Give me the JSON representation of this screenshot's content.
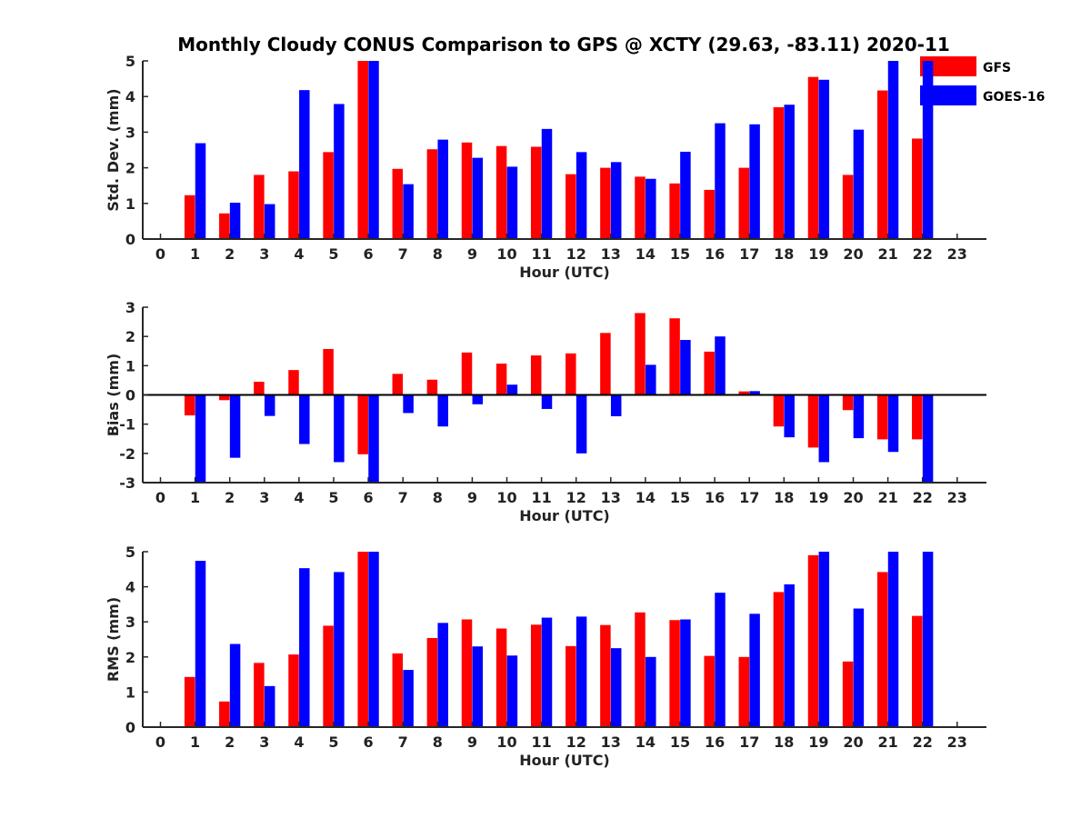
{
  "chart_data": {
    "title": "Monthly Cloudy CONUS Comparison to GPS @ XCTY (29.63, -83.11) 2020-11",
    "legend": [
      {
        "name": "GFS",
        "color": "#ff0000"
      },
      {
        "name": "GOES-16",
        "color": "#0000ff"
      }
    ],
    "legend_placement": "top-right",
    "categories": [
      "0",
      "1",
      "2",
      "3",
      "4",
      "5",
      "6",
      "7",
      "8",
      "9",
      "10",
      "11",
      "12",
      "13",
      "14",
      "15",
      "16",
      "17",
      "18",
      "19",
      "20",
      "21",
      "22",
      "23"
    ],
    "panels": [
      {
        "type": "bar",
        "xlabel": "Hour (UTC)",
        "ylabel": "Std. Dev. (mm)",
        "ylim": [
          0,
          5
        ],
        "yticks": [
          "0",
          "1",
          "2",
          "3",
          "4",
          "5"
        ],
        "series": [
          {
            "name": "GFS",
            "values": [
              null,
              1.23,
              0.72,
              1.8,
              1.9,
              2.44,
              5.0,
              1.97,
              2.52,
              2.71,
              2.61,
              2.59,
              1.82,
              2.0,
              1.75,
              1.56,
              1.38,
              2.0,
              3.7,
              4.55,
              1.8,
              4.17,
              2.82,
              null
            ]
          },
          {
            "name": "GOES-16",
            "values": [
              null,
              2.69,
              1.02,
              0.98,
              4.18,
              3.79,
              5.0,
              1.54,
              2.79,
              2.28,
              2.03,
              3.09,
              2.44,
              2.16,
              1.69,
              2.45,
              3.25,
              3.22,
              3.77,
              4.47,
              3.07,
              5.0,
              5.0,
              null
            ]
          }
        ]
      },
      {
        "type": "bar",
        "xlabel": "Hour (UTC)",
        "ylabel": "Bias (mm)",
        "ylim": [
          -3,
          3
        ],
        "yticks": [
          "-3",
          "-2",
          "-1",
          "0",
          "1",
          "2",
          "3"
        ],
        "series": [
          {
            "name": "GFS",
            "values": [
              null,
              -0.7,
              -0.18,
              0.45,
              0.85,
              1.57,
              -2.03,
              0.72,
              0.52,
              1.45,
              1.07,
              1.35,
              1.42,
              2.12,
              2.8,
              2.62,
              1.48,
              0.12,
              -1.08,
              -1.8,
              -0.52,
              -1.52,
              -1.52,
              null
            ]
          },
          {
            "name": "GOES-16",
            "values": [
              null,
              -3.0,
              -2.15,
              -0.72,
              -1.68,
              -2.3,
              -3.0,
              -0.62,
              -1.08,
              -0.32,
              0.35,
              -0.48,
              -2.0,
              -0.73,
              1.03,
              1.88,
              2.0,
              0.13,
              -1.45,
              -2.3,
              -1.48,
              -1.95,
              -3.0,
              null
            ]
          }
        ]
      },
      {
        "type": "bar",
        "xlabel": "Hour (UTC)",
        "ylabel": "RMS (mm)",
        "ylim": [
          0,
          5
        ],
        "yticks": [
          "0",
          "1",
          "2",
          "3",
          "4",
          "5"
        ],
        "series": [
          {
            "name": "GFS",
            "values": [
              null,
              1.43,
              0.73,
              1.83,
              2.07,
              2.89,
              5.0,
              2.1,
              2.54,
              3.07,
              2.81,
              2.92,
              2.31,
              2.91,
              3.27,
              3.05,
              2.03,
              2.0,
              3.85,
              4.9,
              1.87,
              4.42,
              3.17,
              null
            ]
          },
          {
            "name": "GOES-16",
            "values": [
              null,
              4.74,
              2.37,
              1.17,
              4.53,
              4.42,
              5.0,
              1.63,
              2.97,
              2.3,
              2.04,
              3.12,
              3.15,
              2.25,
              2.0,
              3.07,
              3.83,
              3.23,
              4.07,
              5.0,
              3.38,
              5.0,
              5.0,
              null
            ]
          }
        ]
      }
    ]
  }
}
